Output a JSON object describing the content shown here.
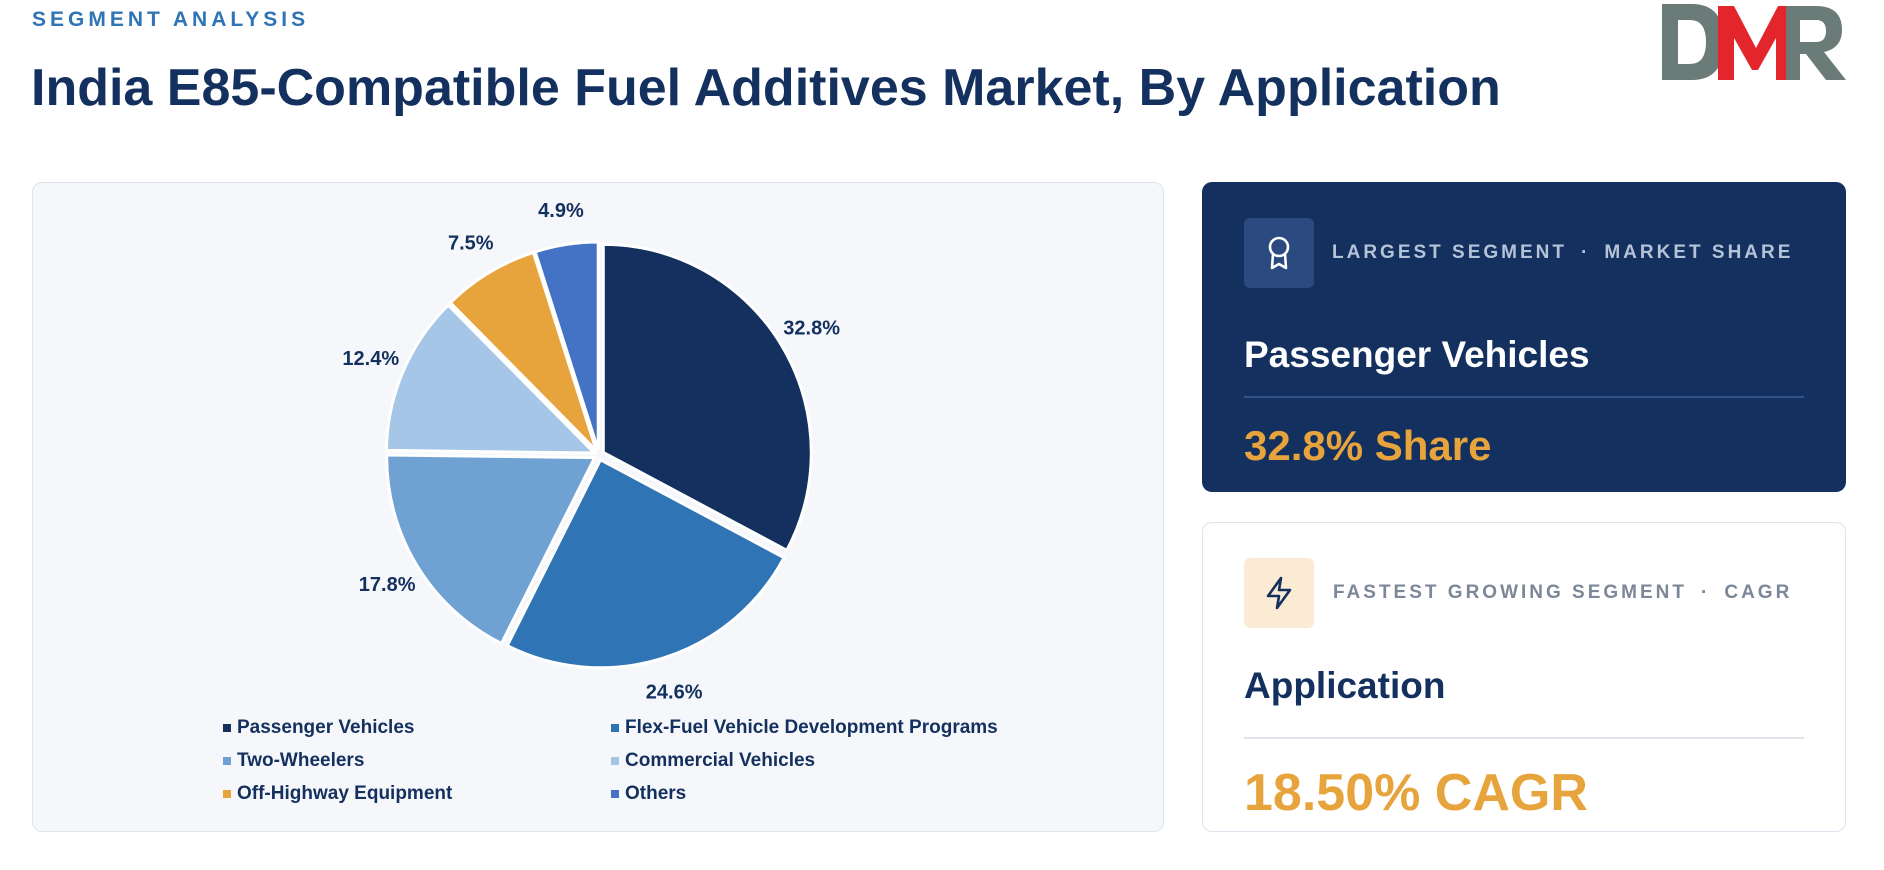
{
  "header": {
    "eyebrow": "SEGMENT ANALYSIS",
    "title": "India E85-Compatible Fuel Additives Market, By Application"
  },
  "logo": {
    "text": "DMR",
    "colors": {
      "d": "#6b7b78",
      "m": "#e3262b",
      "r": "#6b7b78"
    }
  },
  "chart_data": {
    "type": "pie",
    "title": "",
    "categories": [
      "Passenger Vehicles",
      "Flex-Fuel Vehicle Development Programs",
      "Two-Wheelers",
      "Commercial Vehicles",
      "Off-Highway Equipment",
      "Others"
    ],
    "values": [
      32.8,
      24.6,
      17.8,
      12.4,
      7.5,
      4.9
    ],
    "labels": [
      "32.8%",
      "24.6%",
      "17.8%",
      "12.4%",
      "7.5%",
      "4.9%"
    ],
    "colors": [
      "#13305e",
      "#2f74b5",
      "#6fa2d2",
      "#a5c6e7",
      "#e8a43c",
      "#4472c4"
    ],
    "start_angle_deg": 0,
    "direction": "clockwise",
    "legend_position": "bottom"
  },
  "cards": {
    "largest": {
      "icon": "award-icon",
      "label_left": "LARGEST SEGMENT",
      "label_sep": "·",
      "label_right": "MARKET SHARE",
      "name": "Passenger Vehicles",
      "value": "32.8% Share"
    },
    "fastest": {
      "icon": "lightning-icon",
      "label_left": "FASTEST GROWING SEGMENT",
      "label_sep": "·",
      "label_right": "CAGR",
      "name": "Application",
      "value": "18.50% CAGR"
    }
  }
}
